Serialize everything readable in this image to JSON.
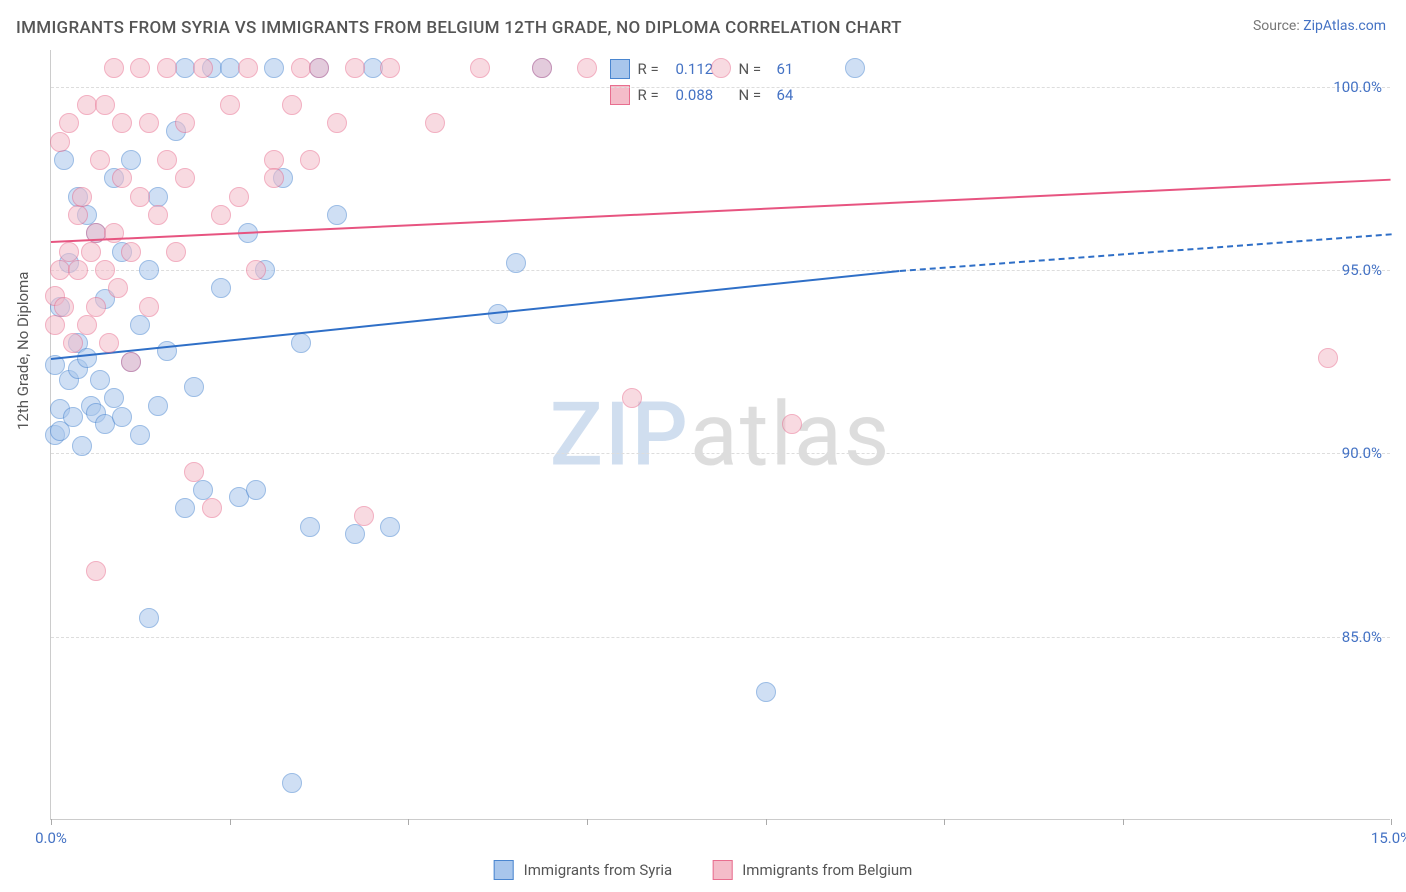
{
  "title": "IMMIGRANTS FROM SYRIA VS IMMIGRANTS FROM BELGIUM 12TH GRADE, NO DIPLOMA CORRELATION CHART",
  "source_label": "Source: ",
  "source_name": "ZipAtlas.com",
  "ylabel": "12th Grade, No Diploma",
  "watermark_a": "ZIP",
  "watermark_b": "atlas",
  "chart": {
    "type": "scatter",
    "xlim": [
      0,
      15
    ],
    "ylim": [
      80,
      101
    ],
    "xtick_positions": [
      0,
      2,
      4,
      6,
      8,
      10,
      12,
      15
    ],
    "xtick_labels": {
      "0": "0.0%",
      "15": "15.0%"
    },
    "ytick_positions": [
      85,
      90,
      95,
      100
    ],
    "ytick_labels": {
      "85": "85.0%",
      "90": "90.0%",
      "95": "95.0%",
      "100": "100.0%"
    },
    "grid_color": "#dddddd",
    "background_color": "#ffffff",
    "axis_color": "#cccccc",
    "tick_label_color": "#4472c4",
    "point_radius": 10,
    "point_opacity": 0.55,
    "series": [
      {
        "name": "Immigrants from Syria",
        "color_fill": "#a8c6ec",
        "color_stroke": "#4a86d0",
        "R": "0.112",
        "N": "61",
        "trend": {
          "x1": 0,
          "y1": 92.6,
          "x2": 9.5,
          "y2": 95.0,
          "x2_dash": 15,
          "y2_dash": 96.0,
          "color": "#2f6fc7",
          "width": 2
        },
        "points": [
          [
            0.05,
            90.5
          ],
          [
            0.05,
            92.4
          ],
          [
            0.1,
            90.6
          ],
          [
            0.1,
            91.2
          ],
          [
            0.1,
            94.0
          ],
          [
            0.15,
            98.0
          ],
          [
            0.2,
            92.0
          ],
          [
            0.2,
            95.2
          ],
          [
            0.25,
            91.0
          ],
          [
            0.3,
            92.3
          ],
          [
            0.3,
            93.0
          ],
          [
            0.3,
            97.0
          ],
          [
            0.35,
            90.2
          ],
          [
            0.4,
            92.6
          ],
          [
            0.4,
            96.5
          ],
          [
            0.45,
            91.3
          ],
          [
            0.5,
            91.1
          ],
          [
            0.5,
            96.0
          ],
          [
            0.55,
            92.0
          ],
          [
            0.6,
            90.8
          ],
          [
            0.6,
            94.2
          ],
          [
            0.7,
            91.5
          ],
          [
            0.7,
            97.5
          ],
          [
            0.8,
            91.0
          ],
          [
            0.8,
            95.5
          ],
          [
            0.9,
            92.5
          ],
          [
            0.9,
            98.0
          ],
          [
            1.0,
            90.5
          ],
          [
            1.0,
            93.5
          ],
          [
            1.1,
            95.0
          ],
          [
            1.2,
            91.3
          ],
          [
            1.2,
            97.0
          ],
          [
            1.3,
            92.8
          ],
          [
            1.4,
            98.8
          ],
          [
            1.5,
            88.5
          ],
          [
            1.5,
            100.5
          ],
          [
            1.6,
            91.8
          ],
          [
            1.7,
            89.0
          ],
          [
            1.8,
            100.5
          ],
          [
            1.9,
            94.5
          ],
          [
            2.0,
            100.5
          ],
          [
            2.1,
            88.8
          ],
          [
            2.2,
            96.0
          ],
          [
            2.3,
            89.0
          ],
          [
            2.4,
            95.0
          ],
          [
            2.5,
            100.5
          ],
          [
            2.6,
            97.5
          ],
          [
            2.7,
            81.0
          ],
          [
            2.8,
            93.0
          ],
          [
            2.9,
            88.0
          ],
          [
            3.0,
            100.5
          ],
          [
            3.2,
            96.5
          ],
          [
            3.4,
            87.8
          ],
          [
            3.6,
            100.5
          ],
          [
            3.8,
            88.0
          ],
          [
            5.0,
            93.8
          ],
          [
            5.2,
            95.2
          ],
          [
            5.5,
            100.5
          ],
          [
            8.0,
            83.5
          ],
          [
            9.0,
            100.5
          ],
          [
            1.1,
            85.5
          ]
        ]
      },
      {
        "name": "Immigrants from Belgium",
        "color_fill": "#f4bcc9",
        "color_stroke": "#e86e8f",
        "R": "0.088",
        "N": "64",
        "trend": {
          "x1": 0,
          "y1": 95.8,
          "x2": 15,
          "y2": 97.5,
          "color": "#e75480",
          "width": 2
        },
        "points": [
          [
            0.05,
            94.3
          ],
          [
            0.05,
            93.5
          ],
          [
            0.1,
            95.0
          ],
          [
            0.1,
            98.5
          ],
          [
            0.15,
            94.0
          ],
          [
            0.2,
            95.5
          ],
          [
            0.2,
            99.0
          ],
          [
            0.25,
            93.0
          ],
          [
            0.3,
            95.0
          ],
          [
            0.3,
            96.5
          ],
          [
            0.35,
            97.0
          ],
          [
            0.4,
            93.5
          ],
          [
            0.4,
            99.5
          ],
          [
            0.45,
            95.5
          ],
          [
            0.5,
            86.8
          ],
          [
            0.5,
            94.0
          ],
          [
            0.5,
            96.0
          ],
          [
            0.55,
            98.0
          ],
          [
            0.6,
            95.0
          ],
          [
            0.6,
            99.5
          ],
          [
            0.65,
            93.0
          ],
          [
            0.7,
            96.0
          ],
          [
            0.7,
            100.5
          ],
          [
            0.75,
            94.5
          ],
          [
            0.8,
            97.5
          ],
          [
            0.8,
            99.0
          ],
          [
            0.9,
            95.5
          ],
          [
            0.9,
            92.5
          ],
          [
            1.0,
            97.0
          ],
          [
            1.0,
            100.5
          ],
          [
            1.1,
            94.0
          ],
          [
            1.1,
            99.0
          ],
          [
            1.2,
            96.5
          ],
          [
            1.3,
            98.0
          ],
          [
            1.3,
            100.5
          ],
          [
            1.4,
            95.5
          ],
          [
            1.5,
            99.0
          ],
          [
            1.5,
            97.5
          ],
          [
            1.6,
            89.5
          ],
          [
            1.7,
            100.5
          ],
          [
            1.8,
            88.5
          ],
          [
            1.9,
            96.5
          ],
          [
            2.0,
            99.5
          ],
          [
            2.1,
            97.0
          ],
          [
            2.2,
            100.5
          ],
          [
            2.3,
            95.0
          ],
          [
            2.5,
            98.0
          ],
          [
            2.5,
            97.5
          ],
          [
            2.7,
            99.5
          ],
          [
            2.8,
            100.5
          ],
          [
            2.9,
            98.0
          ],
          [
            3.0,
            100.5
          ],
          [
            3.2,
            99.0
          ],
          [
            3.4,
            100.5
          ],
          [
            3.5,
            88.3
          ],
          [
            3.8,
            100.5
          ],
          [
            4.3,
            99.0
          ],
          [
            4.8,
            100.5
          ],
          [
            5.5,
            100.5
          ],
          [
            6.0,
            100.5
          ],
          [
            6.5,
            91.5
          ],
          [
            7.5,
            100.5
          ],
          [
            8.3,
            90.8
          ],
          [
            14.3,
            92.6
          ]
        ]
      }
    ]
  },
  "legend_top": {
    "r_label": "R =",
    "n_label": "N ="
  },
  "legend_bottom": {
    "items": [
      "Immigrants from Syria",
      "Immigrants from Belgium"
    ]
  }
}
